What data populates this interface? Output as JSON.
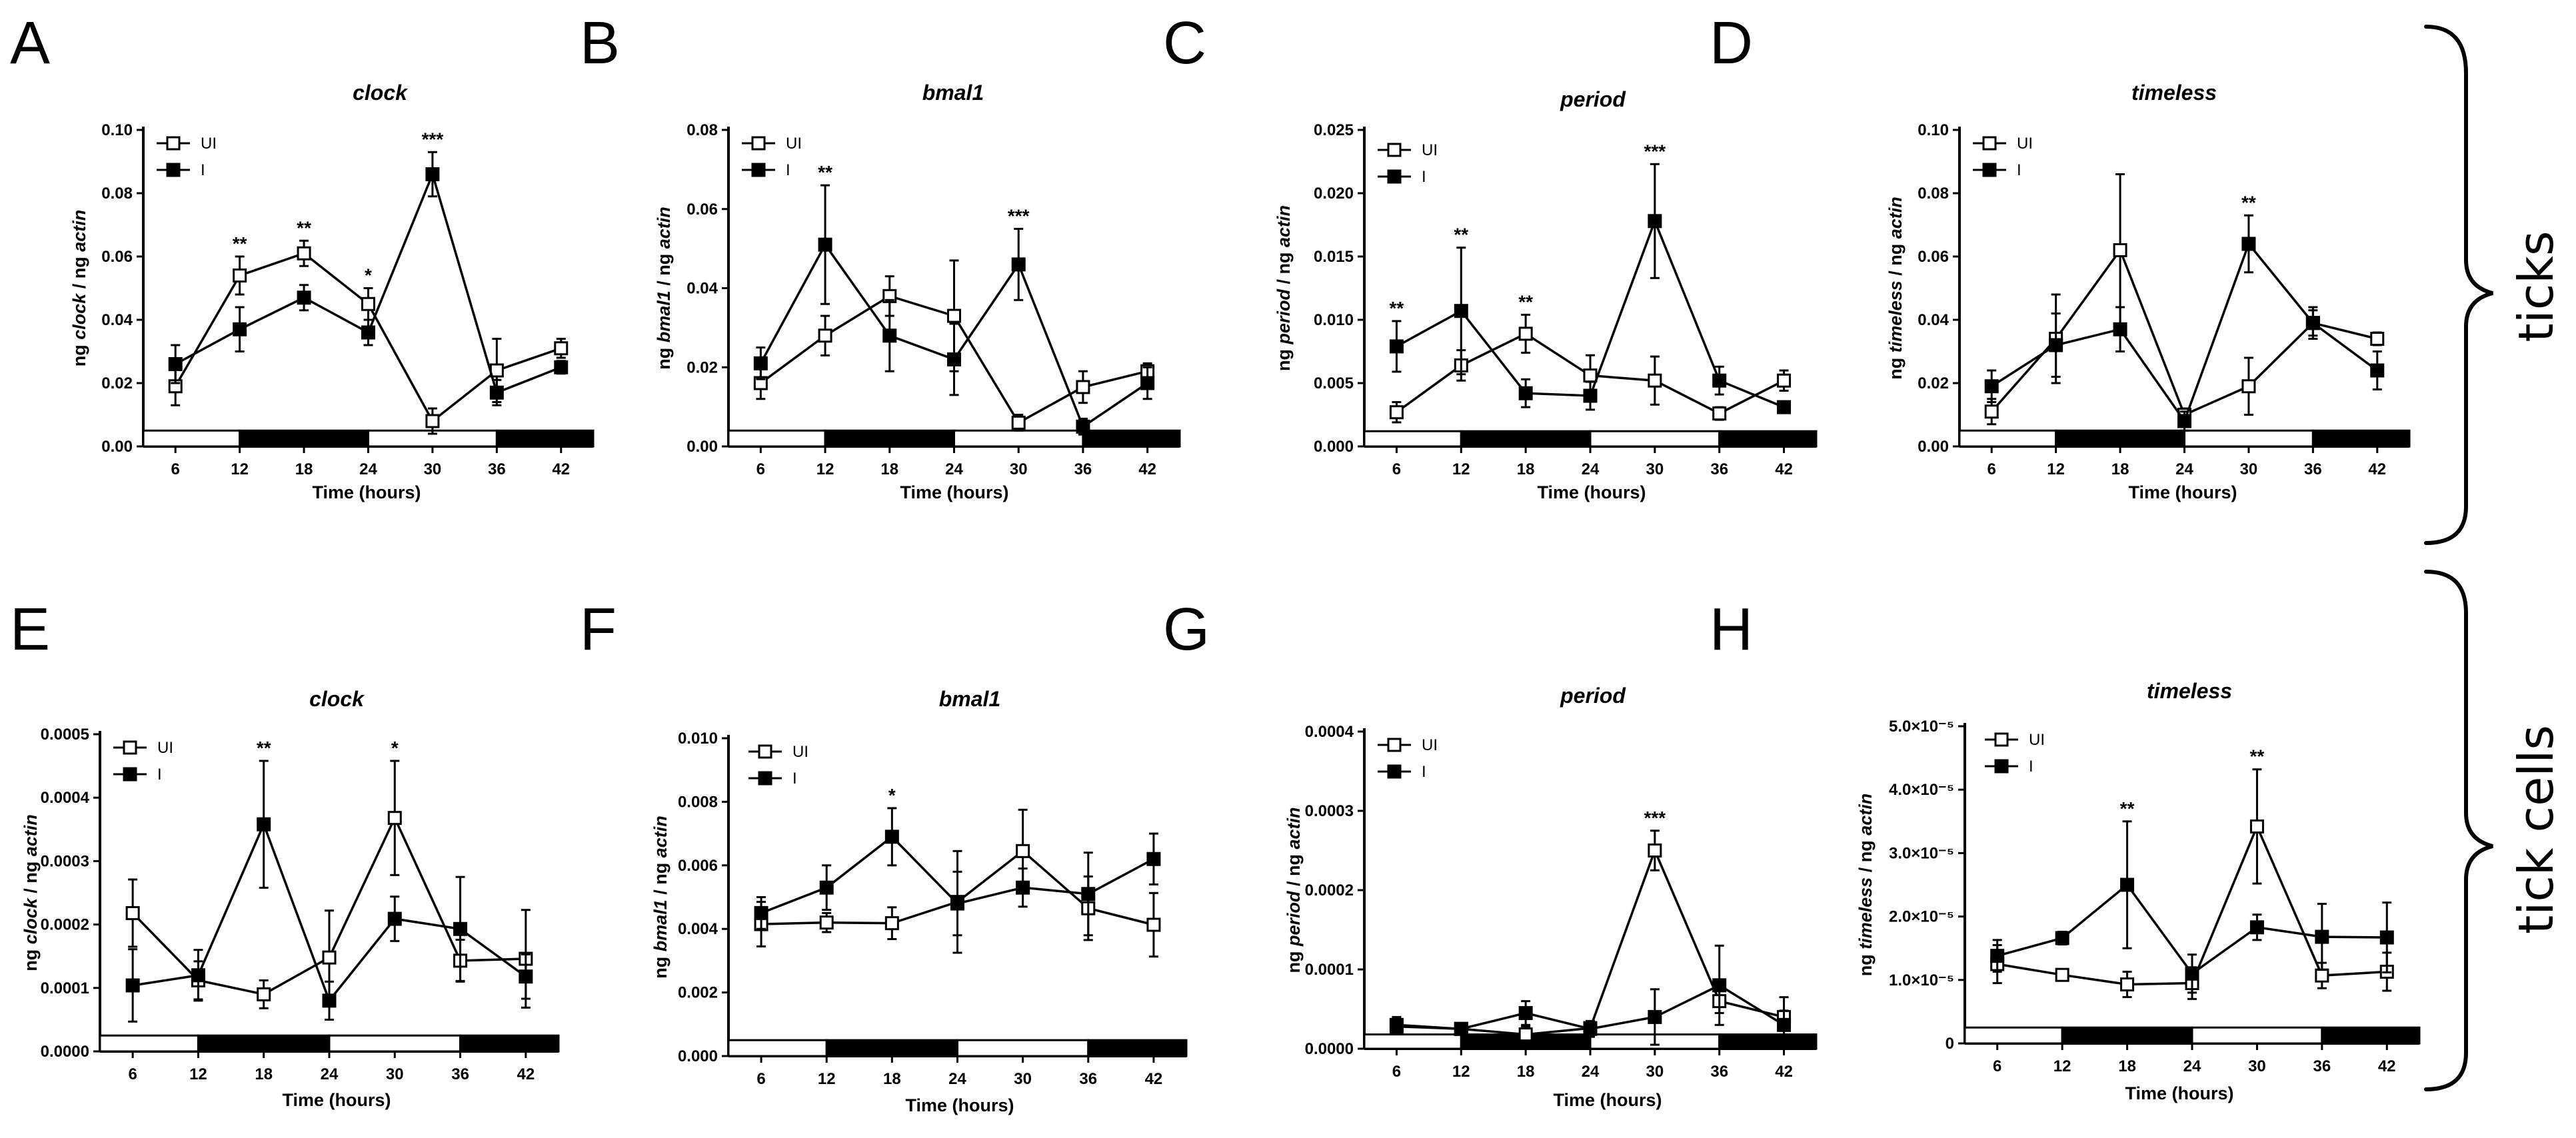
{
  "figure": {
    "legend": {
      "ui_label": "UI",
      "i_label": "I"
    },
    "side_labels": {
      "top": "ticks",
      "bottom": "tick cells"
    }
  },
  "chart_data": [
    {
      "letter": "A",
      "title": "clock",
      "type": "line",
      "ylabel_prefix": "ng ",
      "ylabel_gene": "clock",
      "ylabel_sep": " / ng ",
      "ylabel_actin": "actin",
      "xlabel": "Time (hours)",
      "x": [
        6,
        12,
        18,
        24,
        30,
        36,
        42
      ],
      "x_ticks": [
        "6",
        "12",
        "18",
        "24",
        "30",
        "36",
        "42"
      ],
      "ylim": [
        0,
        0.1
      ],
      "y_ticks": [
        0,
        0.02,
        0.04,
        0.06,
        0.08,
        0.1
      ],
      "y_tick_labels": [
        "0.00",
        "0.02",
        "0.04",
        "0.06",
        "0.08",
        "0.10"
      ],
      "series": [
        {
          "name": "UI",
          "values": [
            0.019,
            0.054,
            0.061,
            0.045,
            0.008,
            0.024,
            0.031
          ],
          "err": [
            0.006,
            0.006,
            0.004,
            0.005,
            0.004,
            0.01,
            0.003
          ]
        },
        {
          "name": "I",
          "values": [
            0.026,
            0.037,
            0.047,
            0.036,
            0.086,
            0.017,
            0.025
          ],
          "err": [
            0.006,
            0.007,
            0.004,
            0.004,
            0.007,
            0.004,
            0.002
          ]
        }
      ],
      "significance": [
        {
          "x": 12,
          "label": "**"
        },
        {
          "x": 18,
          "label": "**"
        },
        {
          "x": 24,
          "label": "*"
        },
        {
          "x": 30,
          "label": "***"
        }
      ],
      "bar_value": 0.005,
      "light_dark": [
        {
          "from": 3,
          "to": 12,
          "dark": false
        },
        {
          "from": 12,
          "to": 24,
          "dark": true
        },
        {
          "from": 24,
          "to": 36,
          "dark": false
        },
        {
          "from": 36,
          "to": 45,
          "dark": true
        }
      ]
    },
    {
      "letter": "B",
      "title": "bmal1",
      "type": "line",
      "ylabel_prefix": "ng ",
      "ylabel_gene": "bmal1",
      "ylabel_sep": " / ng ",
      "ylabel_actin": "actin",
      "xlabel": "Time (hours)",
      "x": [
        6,
        12,
        18,
        24,
        30,
        36,
        42
      ],
      "x_ticks": [
        "6",
        "12",
        "18",
        "24",
        "30",
        "36",
        "42"
      ],
      "ylim": [
        0,
        0.08
      ],
      "y_ticks": [
        0,
        0.02,
        0.04,
        0.06,
        0.08
      ],
      "y_tick_labels": [
        "0.00",
        "0.02",
        "0.04",
        "0.06",
        "0.08"
      ],
      "series": [
        {
          "name": "UI",
          "values": [
            0.016,
            0.028,
            0.038,
            0.033,
            0.006,
            0.015,
            0.019
          ],
          "err": [
            0.004,
            0.005,
            0.005,
            0.014,
            0.002,
            0.004,
            0.002
          ]
        },
        {
          "name": "I",
          "values": [
            0.021,
            0.051,
            0.028,
            0.022,
            0.046,
            0.005,
            0.016
          ],
          "err": [
            0.004,
            0.015,
            0.009,
            0.009,
            0.009,
            0.002,
            0.004
          ]
        }
      ],
      "significance": [
        {
          "x": 12,
          "label": "**"
        },
        {
          "x": 30,
          "label": "***"
        }
      ],
      "bar_value": 0.004,
      "light_dark": [
        {
          "from": 3,
          "to": 12,
          "dark": false
        },
        {
          "from": 12,
          "to": 24,
          "dark": true
        },
        {
          "from": 24,
          "to": 36,
          "dark": false
        },
        {
          "from": 36,
          "to": 45,
          "dark": true
        }
      ]
    },
    {
      "letter": "C",
      "title": "period",
      "type": "line",
      "ylabel_prefix": "ng ",
      "ylabel_gene": "period",
      "ylabel_sep": " / ng ",
      "ylabel_actin": "actin",
      "xlabel": "Time (hours)",
      "x": [
        6,
        12,
        18,
        24,
        30,
        36,
        42
      ],
      "x_ticks": [
        "6",
        "12",
        "18",
        "24",
        "30",
        "36",
        "42"
      ],
      "ylim": [
        0,
        0.025
      ],
      "y_ticks": [
        0,
        0.005,
        0.01,
        0.015,
        0.02,
        0.025
      ],
      "y_tick_labels": [
        "0.000",
        "0.005",
        "0.010",
        "0.015",
        "0.020",
        "0.025"
      ],
      "series": [
        {
          "name": "UI",
          "values": [
            0.0027,
            0.0064,
            0.0089,
            0.0056,
            0.0052,
            0.0026,
            0.0052
          ],
          "err": [
            0.0008,
            0.0012,
            0.0015,
            0.0016,
            0.0019,
            0.0005,
            0.0008
          ]
        },
        {
          "name": "I",
          "values": [
            0.0079,
            0.0107,
            0.0042,
            0.004,
            0.0178,
            0.0052,
            0.0031
          ],
          "err": [
            0.002,
            0.005,
            0.0011,
            0.0011,
            0.0045,
            0.0011,
            0.0003
          ]
        }
      ],
      "significance": [
        {
          "x": 6,
          "label": "**"
        },
        {
          "x": 12,
          "label": "**"
        },
        {
          "x": 18,
          "label": "**"
        },
        {
          "x": 30,
          "label": "***"
        }
      ],
      "bar_value": 0.0012,
      "light_dark": [
        {
          "from": 3,
          "to": 12,
          "dark": false
        },
        {
          "from": 12,
          "to": 24,
          "dark": true
        },
        {
          "from": 24,
          "to": 36,
          "dark": false
        },
        {
          "from": 36,
          "to": 45,
          "dark": true
        }
      ]
    },
    {
      "letter": "D",
      "title": "timeless",
      "type": "line",
      "ylabel_prefix": "ng ",
      "ylabel_gene": "timeless",
      "ylabel_sep": " / ng ",
      "ylabel_actin": "actin",
      "xlabel": "Time (hours)",
      "x": [
        6,
        12,
        18,
        24,
        30,
        36,
        42
      ],
      "x_ticks": [
        "6",
        "12",
        "18",
        "24",
        "30",
        "36",
        "42"
      ],
      "ylim": [
        0,
        0.1
      ],
      "y_ticks": [
        0,
        0.02,
        0.04,
        0.06,
        0.08,
        0.1
      ],
      "y_tick_labels": [
        "0.00",
        "0.02",
        "0.04",
        "0.06",
        "0.08",
        "0.10"
      ],
      "series": [
        {
          "name": "UI",
          "values": [
            0.011,
            0.034,
            0.062,
            0.01,
            0.019,
            0.039,
            0.034
          ],
          "err": [
            0.004,
            0.014,
            0.024,
            0.002,
            0.009,
            0.004,
            0.002
          ]
        },
        {
          "name": "I",
          "values": [
            0.019,
            0.032,
            0.037,
            0.008,
            0.064,
            0.039,
            0.024
          ],
          "err": [
            0.005,
            0.01,
            0.007,
            0.003,
            0.009,
            0.005,
            0.006
          ]
        }
      ],
      "significance": [
        {
          "x": 30,
          "label": "**"
        }
      ],
      "bar_value": 0.005,
      "light_dark": [
        {
          "from": 3,
          "to": 12,
          "dark": false
        },
        {
          "from": 12,
          "to": 24,
          "dark": true
        },
        {
          "from": 24,
          "to": 36,
          "dark": false
        },
        {
          "from": 36,
          "to": 45,
          "dark": true
        }
      ]
    },
    {
      "letter": "E",
      "title": "clock",
      "type": "line",
      "ylabel_prefix": "ng ",
      "ylabel_gene": "clock",
      "ylabel_sep": " / ng ",
      "ylabel_actin": "actin",
      "xlabel": "Time (hours)",
      "x": [
        6,
        12,
        18,
        24,
        30,
        36,
        42
      ],
      "x_ticks": [
        "6",
        "12",
        "18",
        "24",
        "30",
        "36",
        "42"
      ],
      "ylim": [
        0,
        0.0005
      ],
      "y_ticks": [
        0,
        0.0001,
        0.0002,
        0.0003,
        0.0004,
        0.0005
      ],
      "y_tick_labels": [
        "0.0000",
        "0.0001",
        "0.0002",
        "0.0003",
        "0.0004",
        "0.0005"
      ],
      "series": [
        {
          "name": "UI",
          "values": [
            0.000218,
            0.000112,
            9e-05,
            0.000148,
            0.000368,
            0.000143,
            0.000146
          ],
          "err": [
            5.3e-05,
            3e-05,
            2.2e-05,
            7.4e-05,
            9e-05,
            3.3e-05,
            7.7e-05
          ]
        },
        {
          "name": "I",
          "values": [
            0.000104,
            0.00012,
            0.000358,
            8e-05,
            0.000209,
            0.000193,
            0.000118
          ],
          "err": [
            5.7e-05,
            4e-05,
            0.0001,
            3e-05,
            3.5e-05,
            8.2e-05,
            3.5e-05
          ]
        }
      ],
      "significance": [
        {
          "x": 18,
          "label": "**"
        },
        {
          "x": 30,
          "label": "*"
        }
      ],
      "bar_value": 2.5e-05,
      "light_dark": [
        {
          "from": 3,
          "to": 12,
          "dark": false
        },
        {
          "from": 12,
          "to": 24,
          "dark": true
        },
        {
          "from": 24,
          "to": 36,
          "dark": false
        },
        {
          "from": 36,
          "to": 45,
          "dark": true
        }
      ]
    },
    {
      "letter": "F",
      "title": "bmal1",
      "type": "line",
      "ylabel_prefix": "ng ",
      "ylabel_gene": "bmal1",
      "ylabel_sep": " / ng ",
      "ylabel_actin": "actin",
      "xlabel": "Time (hours)",
      "x": [
        6,
        12,
        18,
        24,
        30,
        36,
        42
      ],
      "x_ticks": [
        "6",
        "12",
        "18",
        "24",
        "30",
        "36",
        "42"
      ],
      "ylim": [
        0,
        0.01
      ],
      "y_ticks": [
        0,
        0.002,
        0.004,
        0.006,
        0.008,
        0.01
      ],
      "y_tick_labels": [
        "0.000",
        "0.002",
        "0.004",
        "0.006",
        "0.008",
        "0.010"
      ],
      "series": [
        {
          "name": "UI",
          "values": [
            0.00415,
            0.0042,
            0.00418,
            0.00485,
            0.00645,
            0.00465,
            0.00413
          ],
          "err": [
            0.0007,
            0.0003,
            0.0005,
            0.0016,
            0.0013,
            0.001,
            0.001
          ]
        },
        {
          "name": "I",
          "values": [
            0.0045,
            0.0053,
            0.0069,
            0.0048,
            0.0053,
            0.0051,
            0.0062
          ],
          "err": [
            0.0005,
            0.0007,
            0.0009,
            0.001,
            0.0006,
            0.0013,
            0.0008
          ]
        }
      ],
      "significance": [
        {
          "x": 18,
          "label": "*"
        }
      ],
      "bar_value": 0.0005,
      "light_dark": [
        {
          "from": 3,
          "to": 12,
          "dark": false
        },
        {
          "from": 12,
          "to": 24,
          "dark": true
        },
        {
          "from": 24,
          "to": 36,
          "dark": false
        },
        {
          "from": 36,
          "to": 45,
          "dark": true
        }
      ]
    },
    {
      "letter": "G",
      "title": "period",
      "type": "line",
      "ylabel_prefix": "ng ",
      "ylabel_gene": "period",
      "ylabel_sep": " / ng ",
      "ylabel_actin": "actin",
      "xlabel": "Time (hours)",
      "x": [
        6,
        12,
        18,
        24,
        30,
        36,
        42
      ],
      "x_ticks": [
        "6",
        "12",
        "18",
        "24",
        "30",
        "36",
        "42"
      ],
      "ylim": [
        0,
        0.0004
      ],
      "y_ticks": [
        0,
        0.0001,
        0.0002,
        0.0003,
        0.0004
      ],
      "y_tick_labels": [
        "0.0000",
        "0.0001",
        "0.0002",
        "0.0003",
        "0.0004"
      ],
      "series": [
        {
          "name": "UI",
          "values": [
            2.8e-05,
            2.5e-05,
            1.8e-05,
            2.6e-05,
            0.00025,
            6e-05,
            4e-05
          ],
          "err": [
            6e-06,
            5e-06,
            1e-05,
            8e-06,
            2.5e-05,
            1.5e-05,
            8e-06
          ]
        },
        {
          "name": "I",
          "values": [
            3e-05,
            2.5e-05,
            4.5e-05,
            2.5e-05,
            4e-05,
            8e-05,
            3e-05
          ],
          "err": [
            1e-05,
            5e-06,
            1.5e-05,
            1e-05,
            3.5e-05,
            5e-05,
            3.5e-05
          ]
        }
      ],
      "significance": [
        {
          "x": 30,
          "label": "***"
        }
      ],
      "bar_value": 1.8e-05,
      "light_dark": [
        {
          "from": 3,
          "to": 12,
          "dark": false
        },
        {
          "from": 12,
          "to": 24,
          "dark": true
        },
        {
          "from": 24,
          "to": 36,
          "dark": false
        },
        {
          "from": 36,
          "to": 45,
          "dark": true
        }
      ]
    },
    {
      "letter": "H",
      "title": "timeless",
      "type": "line",
      "ylabel_prefix": "ng ",
      "ylabel_gene": "timeless",
      "ylabel_sep": " / ng ",
      "ylabel_actin": "actin",
      "xlabel": "Time (hours)",
      "x": [
        6,
        12,
        18,
        24,
        30,
        36,
        42
      ],
      "x_ticks": [
        "6",
        "12",
        "18",
        "24",
        "30",
        "36",
        "42"
      ],
      "ylim": [
        0,
        5e-05
      ],
      "y_ticks": [
        0,
        1e-05,
        2e-05,
        3e-05,
        4e-05,
        5e-05
      ],
      "y_tick_labels": [
        "0",
        "1.0×10⁻⁵",
        "2.0×10⁻⁵",
        "3.0×10⁻⁵",
        "4.0×10⁻⁵",
        "5.0×10⁻⁵"
      ],
      "series": [
        {
          "name": "UI",
          "values": [
            1.25e-05,
            1.08e-05,
            9.3e-06,
            9.5e-06,
            3.42e-05,
            1.07e-05,
            1.13e-05
          ],
          "err": [
            3e-06,
            4e-07,
            2e-06,
            2.5e-06,
            9e-06,
            2e-06,
            3e-06
          ]
        },
        {
          "name": "I",
          "values": [
            1.38e-05,
            1.66e-05,
            2.5e-05,
            1.1e-05,
            1.83e-05,
            1.68e-05,
            1.67e-05
          ],
          "err": [
            2.5e-06,
            1e-06,
            1e-05,
            3e-06,
            2e-06,
            5.2e-06,
            5.5e-06
          ]
        }
      ],
      "significance": [
        {
          "x": 18,
          "label": "**"
        },
        {
          "x": 30,
          "label": "**"
        }
      ],
      "bar_value": 2.5e-06,
      "light_dark": [
        {
          "from": 3,
          "to": 12,
          "dark": false
        },
        {
          "from": 12,
          "to": 24,
          "dark": true
        },
        {
          "from": 24,
          "to": 36,
          "dark": false
        },
        {
          "from": 36,
          "to": 45,
          "dark": true
        }
      ]
    }
  ]
}
